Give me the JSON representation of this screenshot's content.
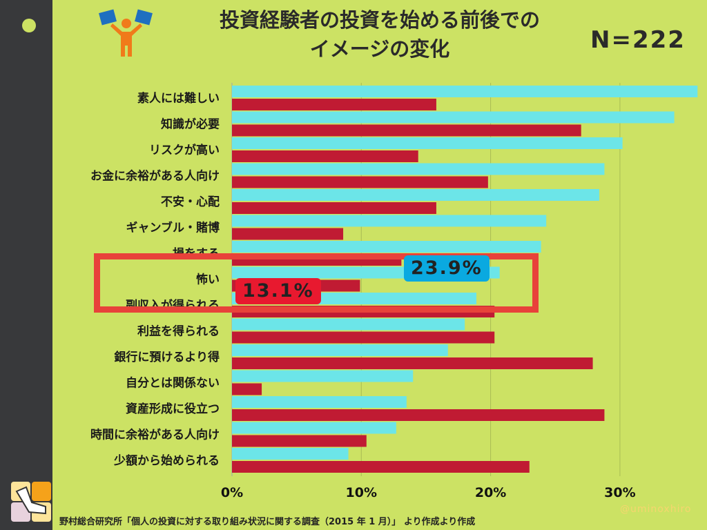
{
  "header": {
    "title_line1": "投資経験者の投資を始める前後での",
    "title_line2": "イメージの変化",
    "sample": "N=222"
  },
  "chart_data": {
    "type": "bar",
    "orientation": "horizontal",
    "categories": [
      "素人には難しい",
      "知識が必要",
      "リスクが高い",
      "お金に余裕がある人向け",
      "不安・心配",
      "ギャンブル・賭博",
      "損をする",
      "怖い",
      "副収入が得られる",
      "利益を得られる",
      "銀行に預けるより得",
      "自分とは関係ない",
      "資産形成に役立つ",
      "時間に余裕がある人向け",
      "少額から始められる"
    ],
    "series": [
      {
        "color": "#6ce5e8",
        "values": [
          36.0,
          34.2,
          30.2,
          28.8,
          28.4,
          24.3,
          23.9,
          20.7,
          18.9,
          18.0,
          16.7,
          14.0,
          13.5,
          12.7,
          9.0
        ]
      },
      {
        "color": "#c01b33",
        "values": [
          15.8,
          27.0,
          14.4,
          19.8,
          15.8,
          8.6,
          13.1,
          9.9,
          20.3,
          20.3,
          27.9,
          2.3,
          28.8,
          10.4,
          23.0
        ]
      }
    ],
    "xlim": [
      0,
      36
    ],
    "xticks": [
      "0%",
      "10%",
      "20%",
      "30%"
    ],
    "grid": true
  },
  "callouts": {
    "blue": "23.9%",
    "red": "13.1%",
    "blue_color": "#0aa9e0",
    "red_color": "#e8192f"
  },
  "footer": "野村総合研究所「個人の投資に対する取り組み状況に関する調査（2015 年 1 月）」 より作成より作成",
  "credit": "@uminoxhiro"
}
